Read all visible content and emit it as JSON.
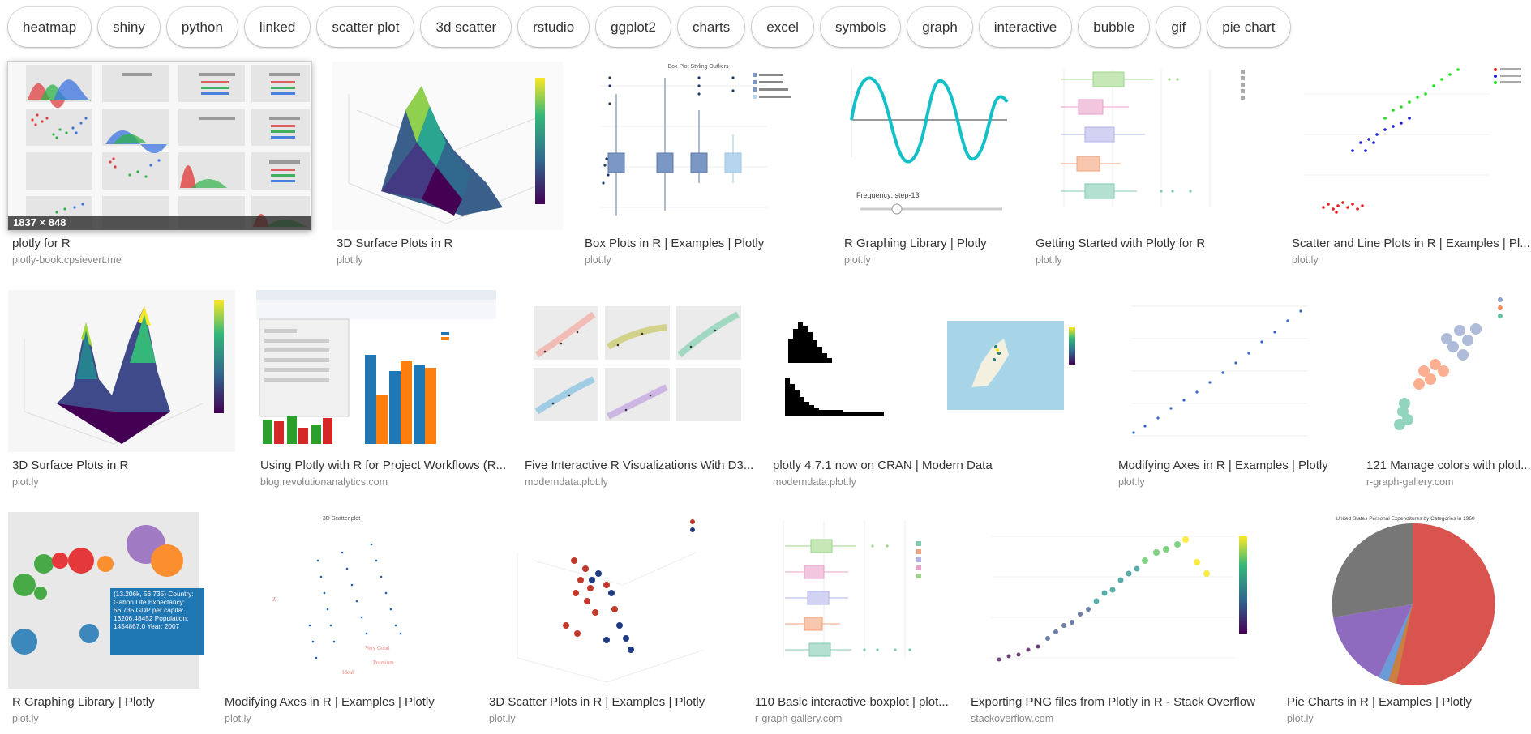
{
  "chips": [
    "heatmap",
    "shiny",
    "python",
    "linked",
    "scatter plot",
    "3d scatter",
    "rstudio",
    "ggplot2",
    "charts",
    "excel",
    "symbols",
    "graph",
    "interactive",
    "bubble",
    "gif",
    "pie chart"
  ],
  "results": [
    {
      "title": "plotly for R",
      "source": "plotly-book.cpsievert.me",
      "size_badge": "1837 × 848",
      "icon": "pairs-plot"
    },
    {
      "title": "3D Surface Plots in R",
      "source": "plot.ly",
      "icon": "surface-3d"
    },
    {
      "title": "Box Plots in R | Examples | Plotly",
      "source": "plot.ly",
      "thumb_text": "Box Plot Styling Outliers",
      "icon": "box-plot"
    },
    {
      "title": "R Graphing Library | Plotly",
      "source": "plot.ly",
      "thumb_text": "Frequency: step-13",
      "icon": "sine-slider"
    },
    {
      "title": "Getting Started with Plotly for R",
      "source": "plot.ly",
      "icon": "horizontal-box"
    },
    {
      "title": "Scatter and Line Plots in R | Examples | Pl...",
      "source": "plot.ly",
      "icon": "iris-scatter"
    },
    {
      "title": "3D Surface Plots in R",
      "source": "plot.ly",
      "icon": "surface-3d-b"
    },
    {
      "title": "Using Plotly with R for Project Workflows (R...",
      "source": "blog.revolutionanalytics.com",
      "icon": "editor-bars"
    },
    {
      "title": "Five Interactive R Visualizations With D3...",
      "source": "moderndata.plot.ly",
      "icon": "facets"
    },
    {
      "title": "plotly 4.7.1 now on CRAN | Modern Data",
      "source": "moderndata.plot.ly",
      "icon": "histogram-map"
    },
    {
      "title": "Modifying Axes in R | Examples | Plotly",
      "source": "plot.ly",
      "icon": "dots-line"
    },
    {
      "title": "121 Manage colors with plotl...",
      "source": "r-graph-gallery.com",
      "icon": "bubble-scatter"
    },
    {
      "title": "R Graphing Library | Plotly",
      "source": "plot.ly",
      "thumb_text": "(13.206k, 56.735) Country: Gabon Life Expectancy: 56.735 GDP per capita: 13206.48452 Population: 1454867.0 Year: 2007",
      "icon": "bubble-tooltip"
    },
    {
      "title": "Modifying Axes in R | Examples | Plotly",
      "source": "plot.ly",
      "thumb_text": "3D Scatter plot",
      "icon": "scatter-3d"
    },
    {
      "title": "3D Scatter Plots in R | Examples | Plotly",
      "source": "plot.ly",
      "icon": "scatter-3d-b"
    },
    {
      "title": "110 Basic interactive boxplot | plot...",
      "source": "r-graph-gallery.com",
      "icon": "horizontal-box-b"
    },
    {
      "title": "Exporting PNG files from Plotly in R - Stack Overflow",
      "source": "stackoverflow.com",
      "icon": "color-scatter"
    },
    {
      "title": "Pie Charts in R | Examples | Plotly",
      "source": "plot.ly",
      "thumb_text": "United States Personal Expenditures by Categories in 1960",
      "icon": "pie"
    }
  ]
}
